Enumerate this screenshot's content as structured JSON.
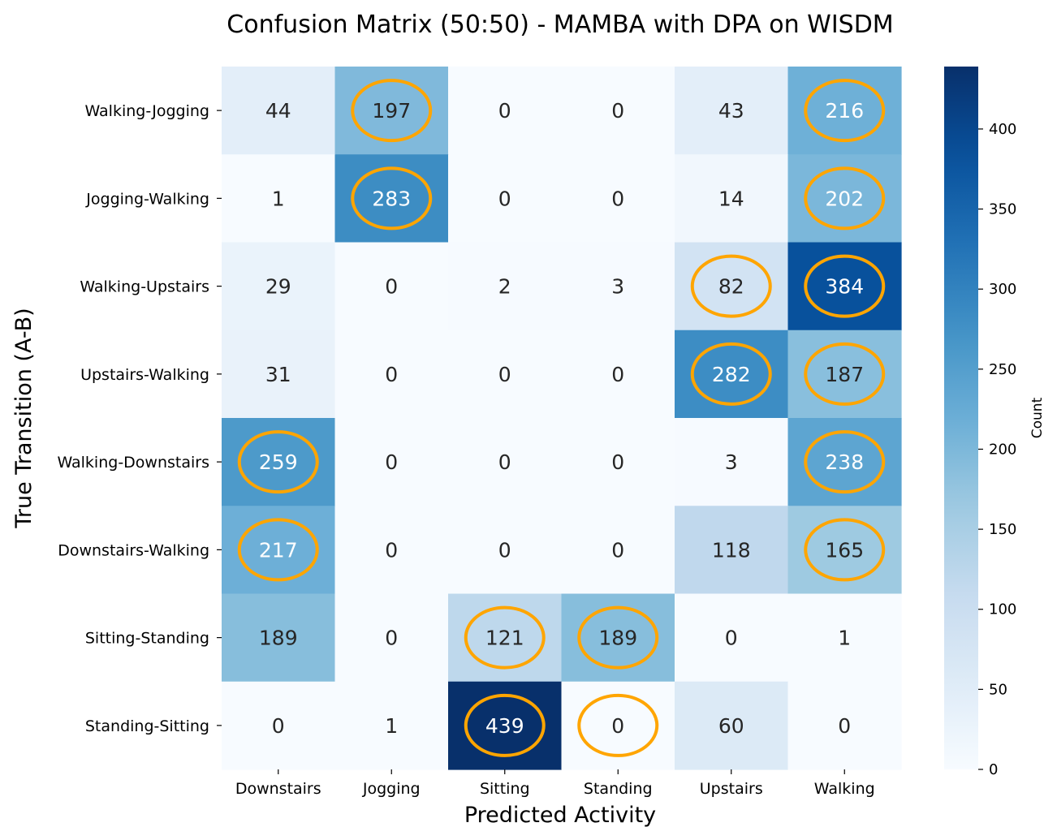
{
  "chart_data": {
    "type": "heatmap",
    "title": "Confusion Matrix (50:50) - MAMBA with DPA on WISDM",
    "xlabel": "Predicted Activity",
    "ylabel": "True Transition (A-B)",
    "x_categories": [
      "Downstairs",
      "Jogging",
      "Sitting",
      "Standing",
      "Upstairs",
      "Walking"
    ],
    "y_categories": [
      "Walking-Jogging",
      "Jogging-Walking",
      "Walking-Upstairs",
      "Upstairs-Walking",
      "Walking-Downstairs",
      "Downstairs-Walking",
      "Sitting-Standing",
      "Standing-Sitting"
    ],
    "values": [
      [
        44,
        197,
        0,
        0,
        43,
        216
      ],
      [
        1,
        283,
        0,
        0,
        14,
        202
      ],
      [
        29,
        0,
        2,
        3,
        82,
        384
      ],
      [
        31,
        0,
        0,
        0,
        282,
        187
      ],
      [
        259,
        0,
        0,
        0,
        3,
        238
      ],
      [
        217,
        0,
        0,
        0,
        118,
        165
      ],
      [
        189,
        0,
        121,
        189,
        0,
        1
      ],
      [
        0,
        1,
        439,
        0,
        60,
        0
      ]
    ],
    "highlighted_cells": [
      [
        0,
        1
      ],
      [
        0,
        5
      ],
      [
        1,
        1
      ],
      [
        1,
        5
      ],
      [
        2,
        4
      ],
      [
        2,
        5
      ],
      [
        3,
        4
      ],
      [
        3,
        5
      ],
      [
        4,
        0
      ],
      [
        4,
        5
      ],
      [
        5,
        0
      ],
      [
        5,
        5
      ],
      [
        6,
        2
      ],
      [
        6,
        3
      ],
      [
        7,
        2
      ],
      [
        7,
        3
      ]
    ],
    "colorbar": {
      "label": "Count",
      "min": 0,
      "max": 439,
      "ticks": [
        0,
        50,
        100,
        150,
        200,
        250,
        300,
        350,
        400
      ]
    },
    "colormap": "Blues",
    "highlight_color": "#ffa500"
  }
}
